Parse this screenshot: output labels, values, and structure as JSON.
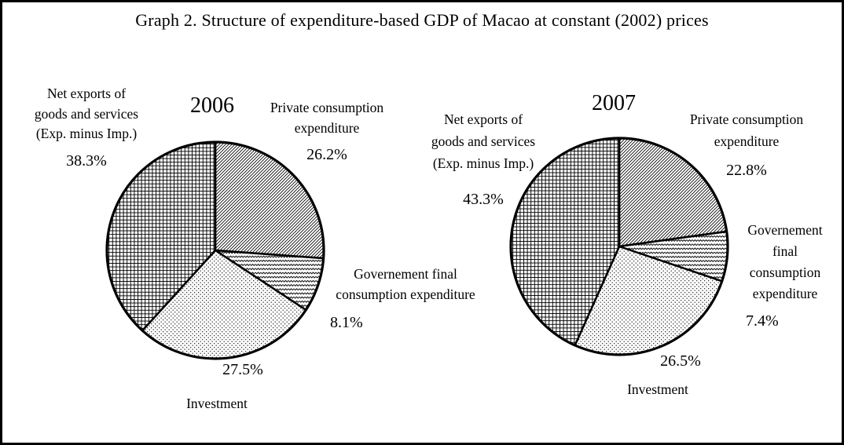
{
  "title": "Graph 2. Structure of expenditure-based GDP of Macao at constant (2002) prices",
  "chart_data": [
    {
      "type": "pie",
      "year": "2006",
      "start_angle_deg": 0,
      "direction": "clockwise-from-top",
      "slices": [
        {
          "id": "private-consumption",
          "label": "Private consumption expenditure",
          "label_lines": [
            "Private consumption",
            "expenditure"
          ],
          "value": 26.2,
          "percent_text": "26.2%",
          "pattern": "diagonal"
        },
        {
          "id": "government",
          "label": "Governement final consumption expenditure",
          "label_lines": [
            "Governement final",
            "consumption expenditure"
          ],
          "value": 8.1,
          "percent_text": "8.1%",
          "pattern": "zigzag"
        },
        {
          "id": "investment",
          "label": "Investment",
          "label_lines": [
            "Investment"
          ],
          "value": 27.5,
          "percent_text": "27.5%",
          "pattern": "dots"
        },
        {
          "id": "net-exports",
          "label": "Net exports of goods and services (Exp. minus Imp.)",
          "label_lines": [
            "Net exports of",
            "goods and services",
            "(Exp. minus Imp.)"
          ],
          "value": 38.3,
          "percent_text": "38.3%",
          "pattern": "crosshatch"
        }
      ]
    },
    {
      "type": "pie",
      "year": "2007",
      "start_angle_deg": 0,
      "direction": "clockwise-from-top",
      "slices": [
        {
          "id": "private-consumption",
          "label": "Private consumption expenditure",
          "label_lines": [
            "Private consumption",
            "expenditure"
          ],
          "value": 22.8,
          "percent_text": "22.8%",
          "pattern": "diagonal"
        },
        {
          "id": "government",
          "label": "Governement final consumption expenditure",
          "label_lines": [
            "Governement",
            "final",
            "consumption",
            "expenditure"
          ],
          "value": 7.4,
          "percent_text": "7.4%",
          "pattern": "zigzag"
        },
        {
          "id": "investment",
          "label": "Investment",
          "label_lines": [
            "Investment"
          ],
          "value": 26.5,
          "percent_text": "26.5%",
          "pattern": "dots"
        },
        {
          "id": "net-exports",
          "label": "Net exports of goods and services (Exp. minus Imp.)",
          "label_lines": [
            "Net exports of",
            "goods and services",
            "(Exp. minus Imp.)"
          ],
          "value": 43.3,
          "percent_text": "43.3%",
          "pattern": "crosshatch"
        }
      ]
    }
  ],
  "colors": {
    "ink": "#000000",
    "background": "#ffffff"
  }
}
